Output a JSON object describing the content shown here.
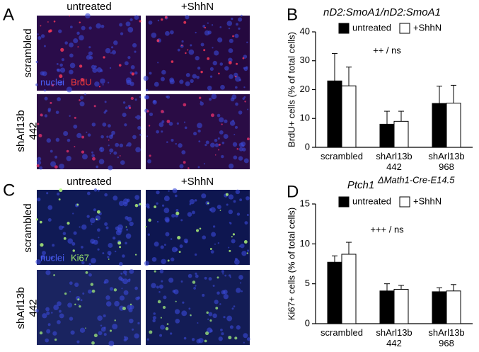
{
  "panels": {
    "letters": [
      "A",
      "B",
      "C",
      "D"
    ],
    "columns": [
      "untreated",
      "+ShhN"
    ],
    "rows": [
      "scrambled",
      "shArl13b\n442"
    ],
    "stain_A": [
      "nuclei",
      "BrdU"
    ],
    "stain_C": [
      "nuclei",
      "Ki67"
    ],
    "columns_C": [
      "untreated",
      "+ShhN"
    ],
    "rows_C": [
      "scrambled",
      "shArl13b\n442"
    ]
  },
  "chart_data": [
    {
      "type": "bar",
      "title": "nD2:SmoA1/nD2:SmoA1",
      "ylabel": "BrdU+ cells (% of total cells)",
      "categories": [
        "scrambled",
        "shArl13b\n442",
        "shArl13b\n968"
      ],
      "series": [
        {
          "name": "untreated",
          "color": "#000000",
          "values": [
            23,
            8,
            15.2
          ],
          "errors": [
            9.5,
            4.5,
            6
          ]
        },
        {
          "name": "+ShhN",
          "color": "#ffffff",
          "values": [
            21.3,
            9,
            15.3
          ],
          "errors": [
            6.5,
            3.5,
            6.2
          ]
        }
      ],
      "ylim": [
        0,
        40
      ],
      "yticks": [
        0,
        10,
        20,
        30,
        40
      ],
      "annotation": "++ / ns"
    },
    {
      "type": "bar",
      "title": "Ptch1",
      "title_superscript": "ΔMath1-Cre-E14.5",
      "ylabel": "Ki67+ cells (% of total cells)",
      "categories": [
        "scrambled",
        "shArl13b\n442",
        "shArl13b\n968"
      ],
      "series": [
        {
          "name": "untreated",
          "color": "#000000",
          "values": [
            7.7,
            4.1,
            4.0
          ],
          "errors": [
            0.8,
            0.9,
            0.5
          ]
        },
        {
          "name": "+ShhN",
          "color": "#ffffff",
          "values": [
            8.7,
            4.3,
            4.1
          ],
          "errors": [
            1.5,
            0.5,
            0.8
          ]
        }
      ],
      "ylim": [
        0,
        15
      ],
      "yticks": [
        0,
        5,
        10,
        15
      ],
      "annotation": "+++ / ns"
    }
  ]
}
